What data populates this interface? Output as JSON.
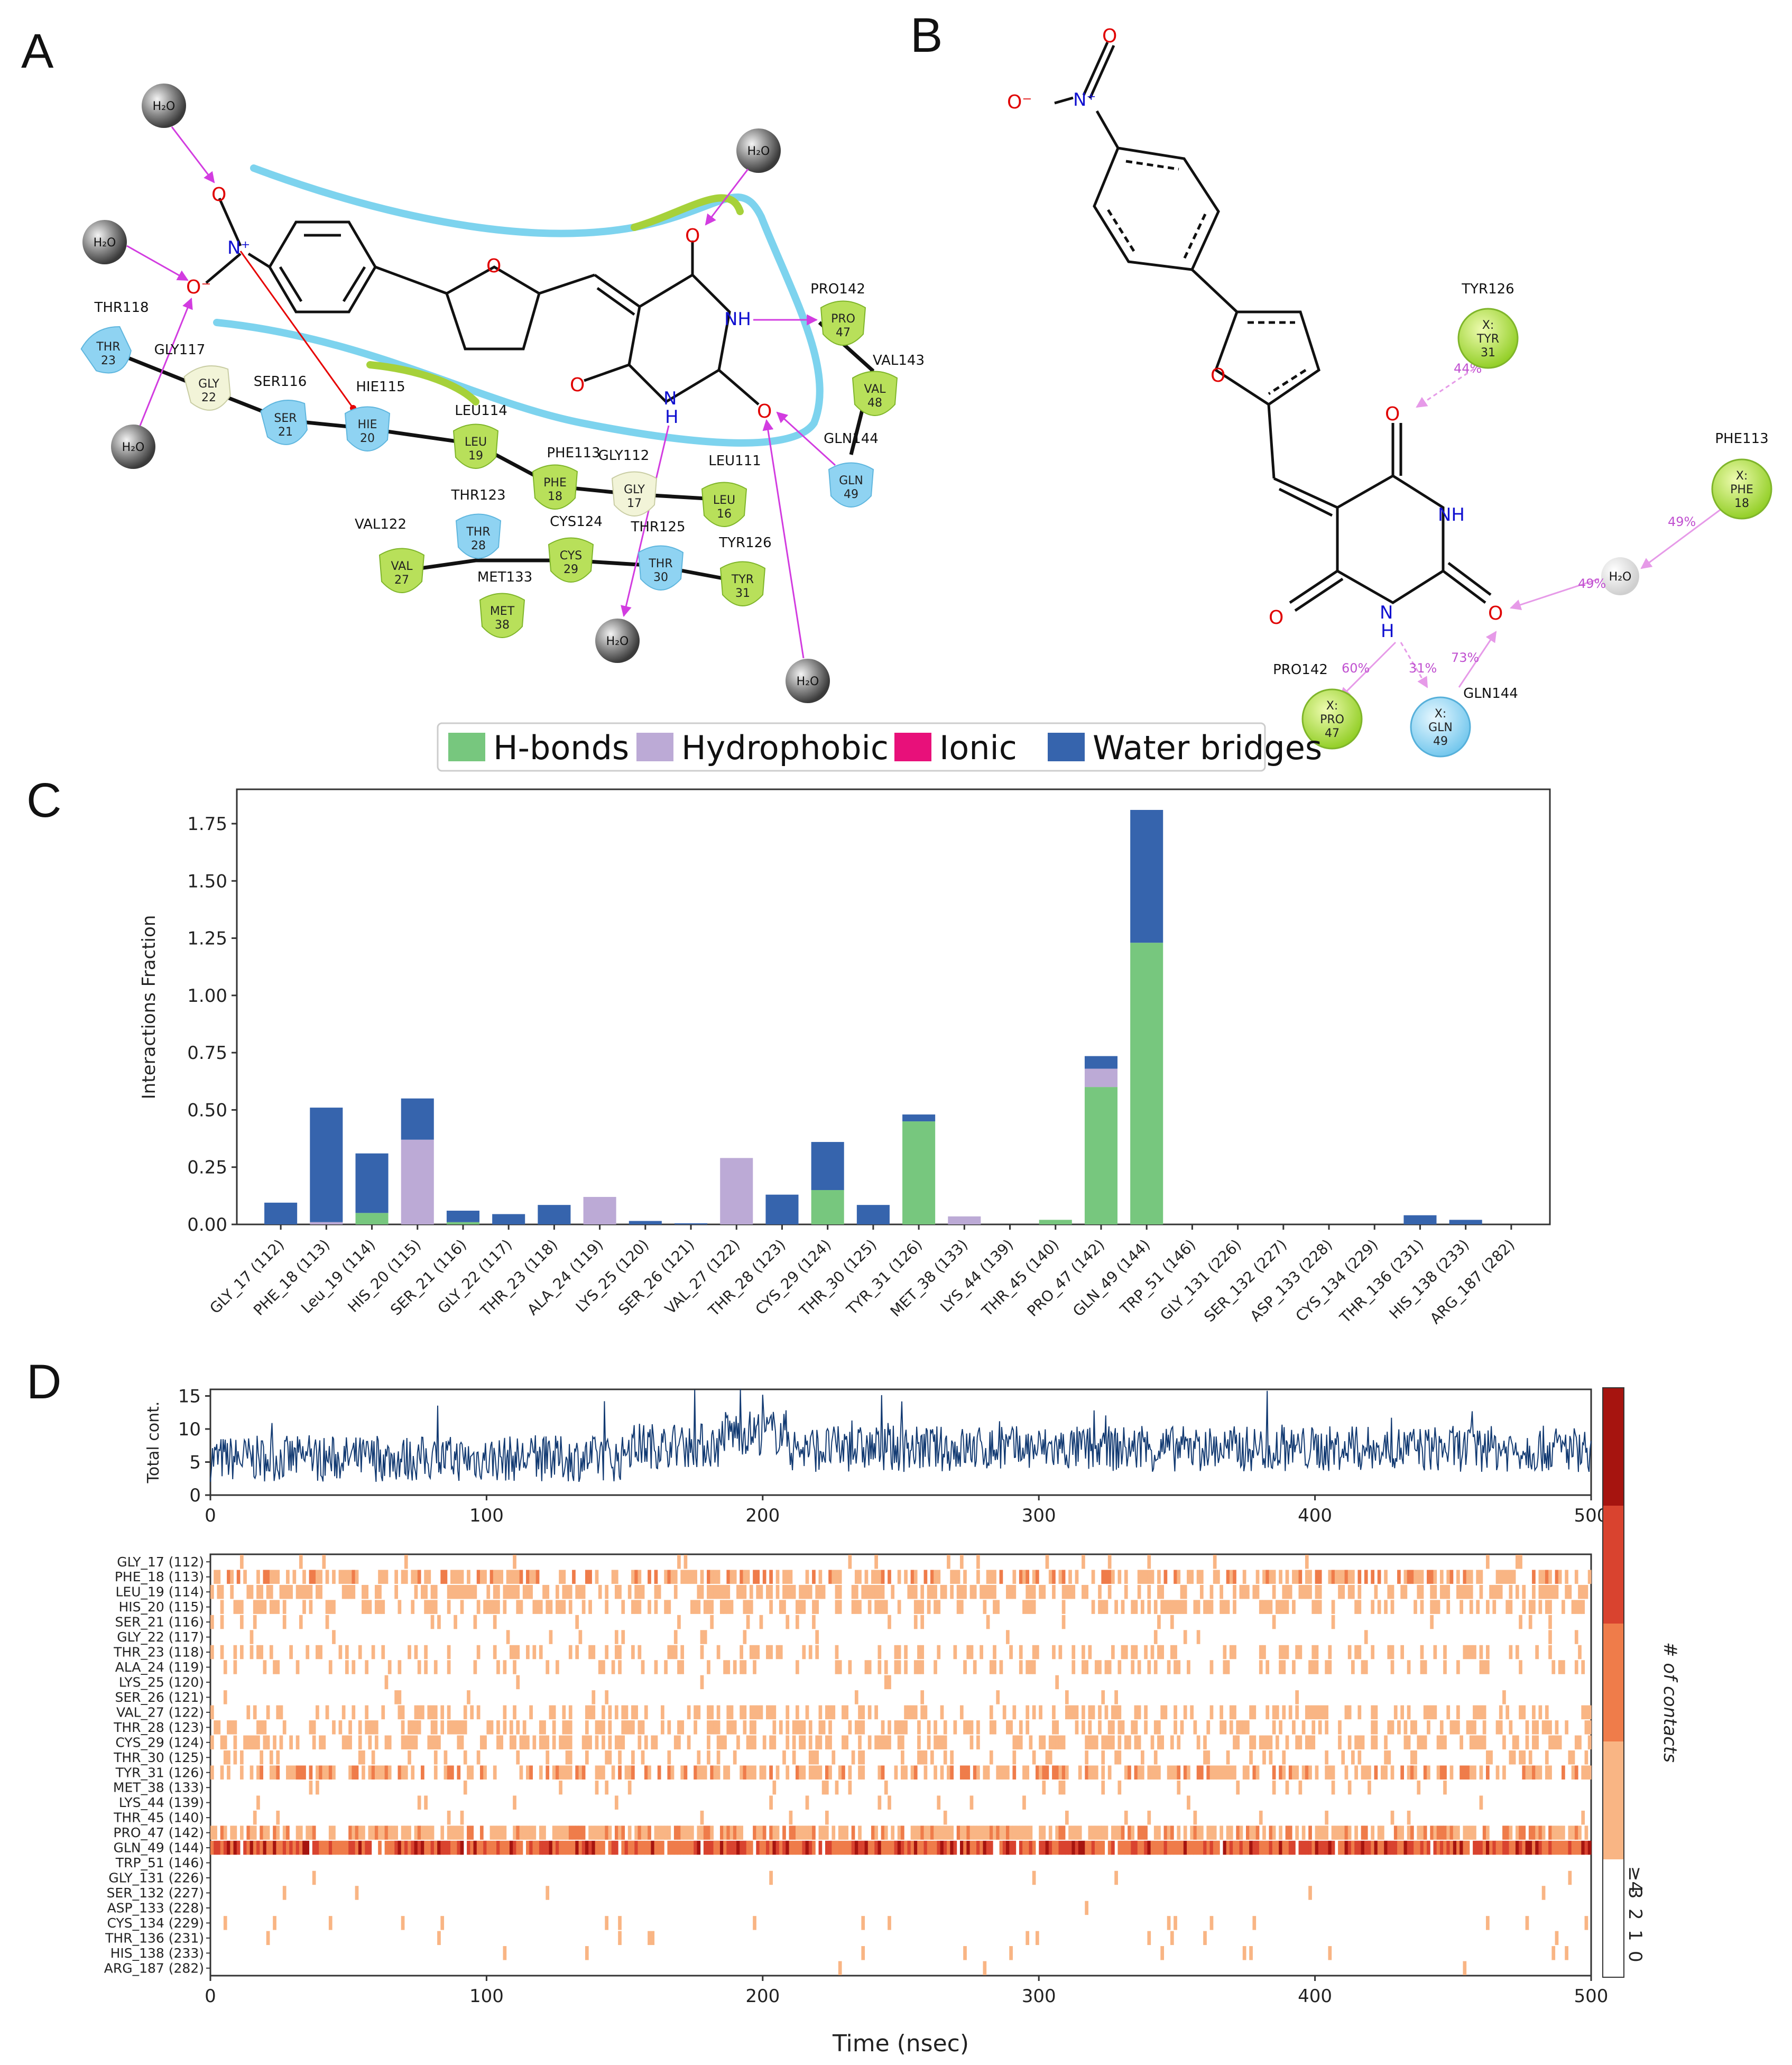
{
  "panels": {
    "a": "A",
    "b": "B",
    "c": "C",
    "d": "D"
  },
  "panel_a": {
    "residues": [
      {
        "lbl": "THR118",
        "n1": "THR",
        "n2": "23",
        "c": "blue"
      },
      {
        "lbl": "GLY117",
        "n1": "GLY",
        "n2": "22",
        "c": "pale"
      },
      {
        "lbl": "SER116",
        "n1": "SER",
        "n2": "21",
        "c": "blue"
      },
      {
        "lbl": "HIE115",
        "n1": "HIE",
        "n2": "20",
        "c": "blue"
      },
      {
        "lbl": "LEU114",
        "n1": "LEU",
        "n2": "19",
        "c": "green"
      },
      {
        "lbl": "PHE113",
        "n1": "PHE",
        "n2": "18",
        "c": "green"
      },
      {
        "lbl": "GLY112",
        "n1": "GLY",
        "n2": "17",
        "c": "pale"
      },
      {
        "lbl": "LEU111",
        "n1": "LEU",
        "n2": "16",
        "c": "green"
      },
      {
        "lbl": "PRO142",
        "n1": "PRO",
        "n2": "47",
        "c": "green"
      },
      {
        "lbl": "VAL143",
        "n1": "VAL",
        "n2": "48",
        "c": "green"
      },
      {
        "lbl": "GLN144",
        "n1": "GLN",
        "n2": "49",
        "c": "blue"
      },
      {
        "lbl": "VAL122",
        "n1": "VAL",
        "n2": "27",
        "c": "green"
      },
      {
        "lbl": "THR123",
        "n1": "THR",
        "n2": "28",
        "c": "blue"
      },
      {
        "lbl": "CYS124",
        "n1": "CYS",
        "n2": "29",
        "c": "green"
      },
      {
        "lbl": "MET133",
        "n1": "MET",
        "n2": "38",
        "c": "green"
      },
      {
        "lbl": "THR125",
        "n1": "THR",
        "n2": "30",
        "c": "blue"
      },
      {
        "lbl": "TYR126",
        "n1": "TYR",
        "n2": "31",
        "c": "green"
      }
    ],
    "water": "H₂O",
    "atoms": {
      "o": "O",
      "n_plus": "N⁺",
      "o_minus": "O⁻",
      "nh": "NH",
      "n": "N",
      "h": "H"
    }
  },
  "panel_b": {
    "contacts": [
      {
        "lbl": "TYR126",
        "n1": "X:",
        "n2": "TYR",
        "n3": "31",
        "c": "green"
      },
      {
        "lbl": "PHE113",
        "n1": "X:",
        "n2": "PHE",
        "n3": "18",
        "c": "green"
      },
      {
        "lbl": "PRO142",
        "n1": "X:",
        "n2": "PRO",
        "n3": "47",
        "c": "green"
      },
      {
        "lbl": "GLN144",
        "n1": "X:",
        "n2": "GLN",
        "n3": "49",
        "c": "blue"
      }
    ],
    "percents": [
      "44%",
      "49%",
      "49%",
      "60%",
      "31%",
      "73%"
    ],
    "water": "H₂O",
    "atoms": {
      "o": "O",
      "n": "N",
      "nh": "NH",
      "h": "H",
      "n_plus": "N⁺",
      "o_minus": "O⁻"
    }
  },
  "legend": [
    {
      "label": "H-bonds",
      "color": "#77c77e"
    },
    {
      "label": "Hydrophobic",
      "color": "#bcaad6"
    },
    {
      "label": "Ionic",
      "color": "#e8107a"
    },
    {
      "label": "Water bridges",
      "color": "#3664ad"
    }
  ],
  "chart_data": [
    {
      "type": "bar",
      "stacked": true,
      "ylabel": "Interactions Fraction",
      "ylim": [
        0,
        1.9
      ],
      "yticks": [
        "0.00",
        "0.25",
        "0.50",
        "0.75",
        "1.00",
        "1.25",
        "1.50",
        "1.75"
      ],
      "categories": [
        "GLY_17 (112)",
        "PHE_18 (113)",
        "Leu_19 (114)",
        "HIS_20 (115)",
        "SER_21 (116)",
        "GLY_22 (117)",
        "THR_23 (118)",
        "ALA_24 (119)",
        "LYS_25 (120)",
        "SER_26 (121)",
        "VAL_27 (122)",
        "THR_28 (123)",
        "CYS_29 (124)",
        "THR_30 (125)",
        "TYR_31 (126)",
        "MET_38 (133)",
        "LYS_44 (139)",
        "THR_45 (140)",
        "PRO_47 (142)",
        "GLN_49 (144)",
        "TRP_51 (146)",
        "GLY_131 (226)",
        "SER_132 (227)",
        "ASP_133 (228)",
        "CYS_134 (229)",
        "THR_136 (231)",
        "HIS_138 (233)",
        "ARG_187 (282)"
      ],
      "series": [
        {
          "name": "H-bonds",
          "color": "#77c77e",
          "values": [
            0,
            0,
            0.05,
            0,
            0.01,
            0,
            0,
            0,
            0,
            0,
            0,
            0,
            0.15,
            0,
            0.45,
            0,
            0,
            0.02,
            0.6,
            1.23,
            0,
            0,
            0,
            0,
            0,
            0,
            0,
            0
          ]
        },
        {
          "name": "Hydrophobic",
          "color": "#bcaad6",
          "values": [
            0,
            0.01,
            0,
            0.37,
            0,
            0,
            0,
            0.12,
            0,
            0,
            0.29,
            0,
            0,
            0,
            0,
            0.035,
            0,
            0,
            0.08,
            0,
            0,
            0,
            0,
            0,
            0,
            0,
            0,
            0
          ]
        },
        {
          "name": "Ionic",
          "color": "#e8107a",
          "values": [
            0,
            0,
            0,
            0,
            0,
            0,
            0,
            0,
            0,
            0,
            0,
            0,
            0,
            0,
            0,
            0,
            0,
            0,
            0,
            0,
            0,
            0,
            0,
            0,
            0,
            0,
            0,
            0
          ]
        },
        {
          "name": "Water bridges",
          "color": "#3664ad",
          "values": [
            0.095,
            0.5,
            0.26,
            0.18,
            0.05,
            0.045,
            0.085,
            0,
            0.015,
            0.005,
            0,
            0.13,
            0.21,
            0.085,
            0.03,
            0,
            0,
            0,
            0.055,
            0.58,
            0,
            0,
            0,
            0,
            0,
            0.04,
            0.02,
            0
          ]
        }
      ]
    },
    {
      "type": "line",
      "ylabel": "Total cont.",
      "ylim": [
        0,
        16
      ],
      "yticks": [
        "0",
        "5",
        "10",
        "15"
      ],
      "xlim": [
        0,
        500
      ],
      "xticks": [
        "0",
        "100",
        "200",
        "300",
        "400",
        "500"
      ],
      "color": "#123a72"
    },
    {
      "type": "heatmap",
      "xlabel": "Time (nsec)",
      "xlim": [
        0,
        500
      ],
      "xticks": [
        "0",
        "100",
        "200",
        "300",
        "400",
        "500"
      ],
      "rows": [
        "GLY_17 (112)",
        "PHE_18 (113)",
        "LEU_19 (114)",
        "HIS_20 (115)",
        "SER_21 (116)",
        "GLY_22 (117)",
        "THR_23 (118)",
        "ALA_24 (119)",
        "LYS_25 (120)",
        "SER_26 (121)",
        "VAL_27 (122)",
        "THR_28 (123)",
        "CYS_29 (124)",
        "THR_30 (125)",
        "TYR_31 (126)",
        "MET_38 (133)",
        "LYS_44 (139)",
        "THR_45 (140)",
        "PRO_47 (142)",
        "GLN_49 (144)",
        "TRP_51 (146)",
        "GLY_131 (226)",
        "SER_132 (227)",
        "ASP_133 (228)",
        "CYS_134 (229)",
        "THR_136 (231)",
        "HIS_138 (233)",
        "ARG_187 (282)"
      ],
      "density": [
        0.04,
        0.55,
        0.5,
        0.45,
        0.12,
        0.04,
        0.3,
        0.25,
        0.02,
        0.02,
        0.35,
        0.4,
        0.45,
        0.2,
        0.55,
        0.05,
        0.02,
        0.05,
        0.7,
        0.95,
        0,
        0.01,
        0.01,
        0.005,
        0.03,
        0.02,
        0.02,
        0.005
      ],
      "colorbar": {
        "label": "# of contacts",
        "ticks": [
          "0",
          "1",
          "2",
          "3",
          "≥4"
        ],
        "colors": [
          "#ffffff",
          "#f9b584",
          "#ef7c4a",
          "#d9432f",
          "#a6140f"
        ]
      }
    }
  ]
}
